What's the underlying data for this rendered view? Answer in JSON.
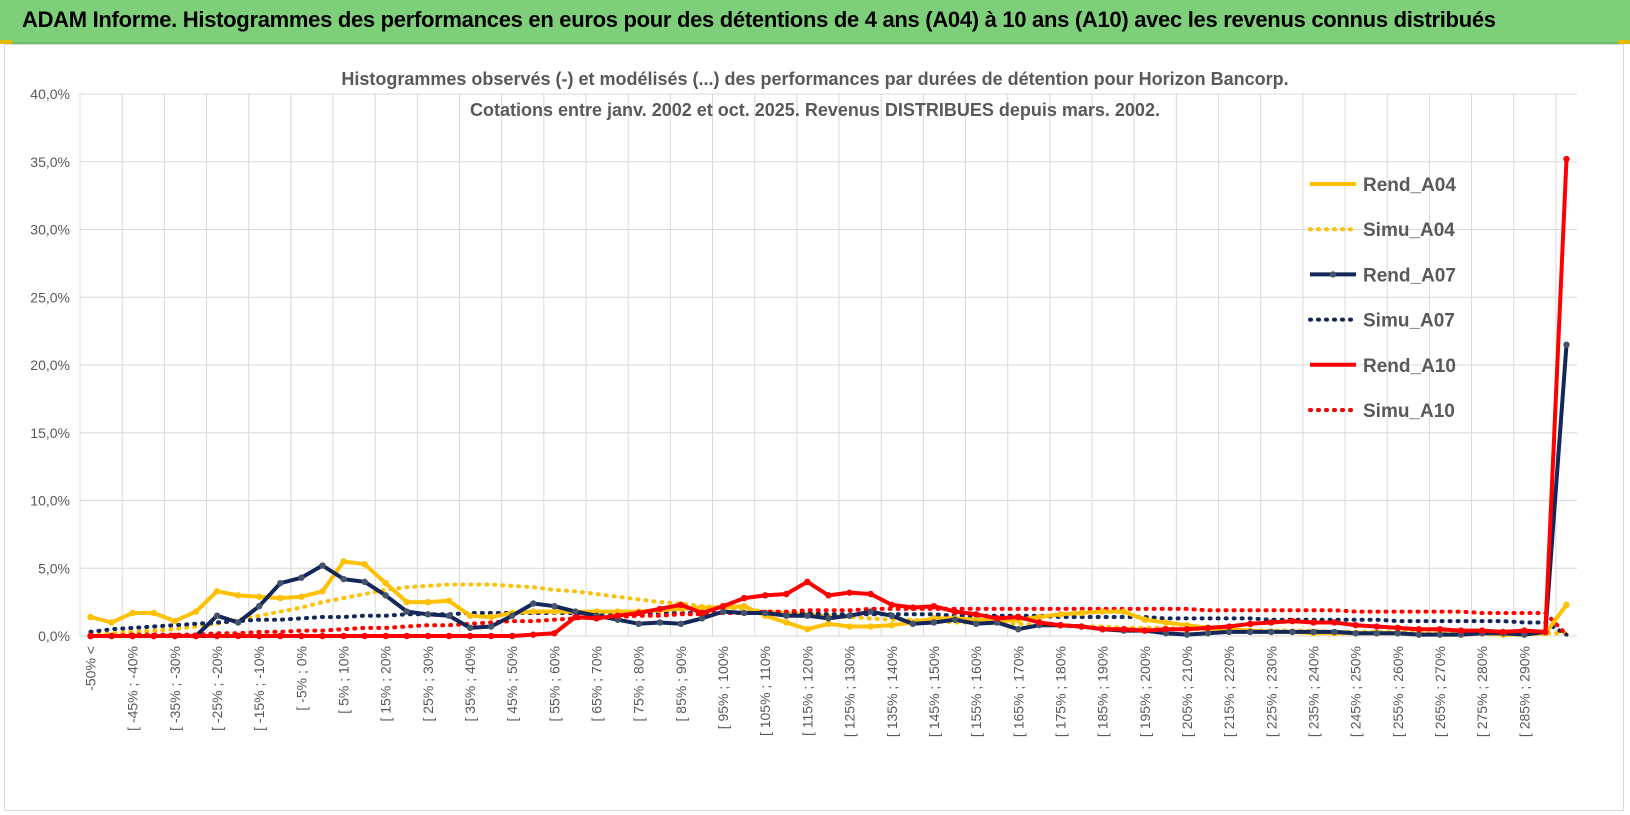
{
  "header": {
    "title": "ADAM Informe. Histogrammes des performances en euros pour des détentions de 4 ans (A04) à 10 ans (A10) avec les revenus connus distribués"
  },
  "colors": {
    "header_bg": "#7ecf7a",
    "A04": "#ffc000",
    "A07": "#14275a",
    "A10": "#ff0000",
    "grid": "#d9d9d9",
    "axis_text": "#595959"
  },
  "chart_data": {
    "type": "line",
    "title": "Histogrammes observés (-) et modélisés (...) des performances par durées de détention pour Horizon Bancorp.",
    "subtitle": "Cotations entre janv. 2002 et oct. 2025.  Revenus DISTRIBUES depuis mars. 2002.",
    "xlabel": "",
    "ylabel": "",
    "ylim": [
      0,
      40
    ],
    "yticks": [
      "0,0%",
      "5,0%",
      "10,0%",
      "15,0%",
      "20,0%",
      "25,0%",
      "30,0%",
      "35,0%",
      "40,0%"
    ],
    "xtick_labels": [
      "-50% <",
      "[ -45% ; -40%",
      "[ -35% ; -30%",
      "[ -25% ; -20%",
      "[ -15% ; -10%",
      "[ -5% ; 0%",
      "[ 5% ; 10%",
      "[ 15% ; 20%",
      "[ 25% ; 30%",
      "[ 35% ; 40%",
      "[ 45% ; 50%",
      "[ 55% ; 60%",
      "[ 65% ; 70%",
      "[ 75% ; 80%",
      "[ 85% ; 90%",
      "[ 95% ; 100%",
      "[ 105% ; 110%",
      "[ 115% ; 120%",
      "[ 125% ; 130%",
      "[ 135% ; 140%",
      "[ 145% ; 150%",
      "[ 155% ; 160%",
      "[ 165% ; 170%",
      "[ 175% ; 180%",
      "[ 185% ; 190%",
      "[ 195% ; 200%",
      "[ 205% ; 210%",
      "[ 215% ; 220%",
      "[ 225% ; 230%",
      "[ 235% ; 240%",
      "[ 245% ; 250%",
      "[ 255% ; 260%",
      "[ 265% ; 270%",
      "[ 275% ; 280%",
      "[ 285% ; 290%"
    ],
    "n_categories": 71,
    "legend_position": "right",
    "series": [
      {
        "name": "Rend_A04",
        "style": "solid",
        "color": "#ffc000",
        "values": [
          1.4,
          1.0,
          1.7,
          1.7,
          1.1,
          1.8,
          3.3,
          3.0,
          2.9,
          2.8,
          2.9,
          3.3,
          5.5,
          5.3,
          3.9,
          2.5,
          2.5,
          2.6,
          1.5,
          1.4,
          1.7,
          1.8,
          1.8,
          1.8,
          1.8,
          1.8,
          1.8,
          1.9,
          2.0,
          2.1,
          2.1,
          2.2,
          1.5,
          1.0,
          0.5,
          0.9,
          0.7,
          0.7,
          0.8,
          1.0,
          1.3,
          1.3,
          1.2,
          1.1,
          1.2,
          1.4,
          1.6,
          1.7,
          1.8,
          1.8,
          1.2,
          1.0,
          0.8,
          0.6,
          0.5,
          0.4,
          0.3,
          0.3,
          0.2,
          0.2,
          0.2,
          0.2,
          0.2,
          0.1,
          0.1,
          0.1,
          0.2,
          0.1,
          0.1,
          0.2,
          2.3
        ]
      },
      {
        "name": "Simu_A04",
        "style": "dotted",
        "color": "#ffc000",
        "values": [
          0.1,
          0.2,
          0.3,
          0.4,
          0.5,
          0.7,
          0.9,
          1.2,
          1.5,
          1.8,
          2.1,
          2.5,
          2.8,
          3.1,
          3.4,
          3.6,
          3.7,
          3.8,
          3.8,
          3.8,
          3.7,
          3.6,
          3.4,
          3.3,
          3.1,
          2.9,
          2.7,
          2.5,
          2.4,
          2.2,
          2.1,
          2.0,
          1.8,
          1.7,
          1.6,
          1.5,
          1.4,
          1.3,
          1.2,
          1.2,
          1.1,
          1.0,
          1.0,
          0.9,
          0.9,
          0.8,
          0.8,
          0.7,
          0.7,
          0.6,
          0.6,
          0.6,
          0.5,
          0.5,
          0.5,
          0.4,
          0.4,
          0.4,
          0.4,
          0.3,
          0.3,
          0.3,
          0.3,
          0.3,
          0.2,
          0.2,
          0.2,
          0.2,
          0.2,
          0.2,
          0.2
        ]
      },
      {
        "name": "Rend_A07",
        "style": "solid",
        "color": "#14275a",
        "values": [
          0.0,
          0.0,
          0.0,
          0.0,
          0.0,
          0.0,
          1.5,
          1.0,
          2.2,
          3.9,
          4.3,
          5.2,
          4.2,
          4.0,
          3.0,
          1.8,
          1.6,
          1.5,
          0.6,
          0.7,
          1.5,
          2.4,
          2.2,
          1.8,
          1.5,
          1.2,
          0.9,
          1.0,
          0.9,
          1.3,
          1.8,
          1.7,
          1.7,
          1.5,
          1.5,
          1.3,
          1.5,
          1.8,
          1.5,
          0.9,
          1.0,
          1.2,
          0.9,
          1.0,
          0.5,
          0.8,
          0.8,
          0.7,
          0.5,
          0.4,
          0.4,
          0.2,
          0.1,
          0.2,
          0.3,
          0.3,
          0.3,
          0.3,
          0.3,
          0.3,
          0.2,
          0.2,
          0.2,
          0.1,
          0.1,
          0.1,
          0.2,
          0.2,
          0.1,
          0.3,
          21.5
        ]
      },
      {
        "name": "Simu_A07",
        "style": "dotted",
        "color": "#14275a",
        "values": [
          0.3,
          0.5,
          0.6,
          0.7,
          0.8,
          0.9,
          1.0,
          1.1,
          1.2,
          1.2,
          1.3,
          1.4,
          1.4,
          1.5,
          1.5,
          1.6,
          1.6,
          1.6,
          1.7,
          1.7,
          1.7,
          1.7,
          1.7,
          1.7,
          1.7,
          1.7,
          1.7,
          1.7,
          1.7,
          1.7,
          1.7,
          1.7,
          1.7,
          1.7,
          1.7,
          1.6,
          1.6,
          1.6,
          1.6,
          1.6,
          1.6,
          1.5,
          1.5,
          1.5,
          1.5,
          1.5,
          1.4,
          1.4,
          1.4,
          1.4,
          1.4,
          1.3,
          1.3,
          1.3,
          1.3,
          1.3,
          1.2,
          1.2,
          1.2,
          1.2,
          1.2,
          1.2,
          1.1,
          1.1,
          1.1,
          1.1,
          1.1,
          1.1,
          1.0,
          1.0,
          0.1
        ]
      },
      {
        "name": "Rend_A10",
        "style": "solid",
        "color": "#ff0000",
        "values": [
          0.0,
          0.0,
          0.0,
          0.0,
          0.0,
          0.0,
          0.0,
          0.0,
          0.0,
          0.0,
          0.0,
          0.0,
          0.0,
          0.0,
          0.0,
          0.0,
          0.0,
          0.0,
          0.0,
          0.0,
          0.0,
          0.1,
          0.2,
          1.4,
          1.3,
          1.5,
          1.7,
          2.0,
          2.3,
          1.7,
          2.2,
          2.8,
          3.0,
          3.1,
          4.0,
          3.0,
          3.2,
          3.1,
          2.3,
          2.1,
          2.2,
          1.8,
          1.6,
          1.3,
          1.4,
          1.0,
          0.8,
          0.7,
          0.5,
          0.5,
          0.4,
          0.5,
          0.5,
          0.6,
          0.7,
          0.9,
          1.0,
          1.1,
          1.0,
          1.0,
          0.8,
          0.7,
          0.6,
          0.5,
          0.5,
          0.4,
          0.4,
          0.3,
          0.4,
          0.3,
          35.2
        ]
      },
      {
        "name": "Simu_A10",
        "style": "dotted",
        "color": "#ff0000",
        "values": [
          0.0,
          0.0,
          0.1,
          0.1,
          0.1,
          0.1,
          0.2,
          0.2,
          0.3,
          0.3,
          0.4,
          0.4,
          0.5,
          0.6,
          0.6,
          0.7,
          0.8,
          0.8,
          0.9,
          1.0,
          1.1,
          1.1,
          1.2,
          1.3,
          1.4,
          1.4,
          1.5,
          1.5,
          1.6,
          1.6,
          1.7,
          1.7,
          1.8,
          1.8,
          1.9,
          1.9,
          1.9,
          2.0,
          2.0,
          2.0,
          2.0,
          2.0,
          2.0,
          2.0,
          2.0,
          2.0,
          2.0,
          2.0,
          2.0,
          2.0,
          2.0,
          2.0,
          2.0,
          1.9,
          1.9,
          1.9,
          1.9,
          1.9,
          1.9,
          1.9,
          1.8,
          1.8,
          1.8,
          1.8,
          1.8,
          1.8,
          1.7,
          1.7,
          1.7,
          1.7,
          0.1
        ]
      }
    ]
  }
}
